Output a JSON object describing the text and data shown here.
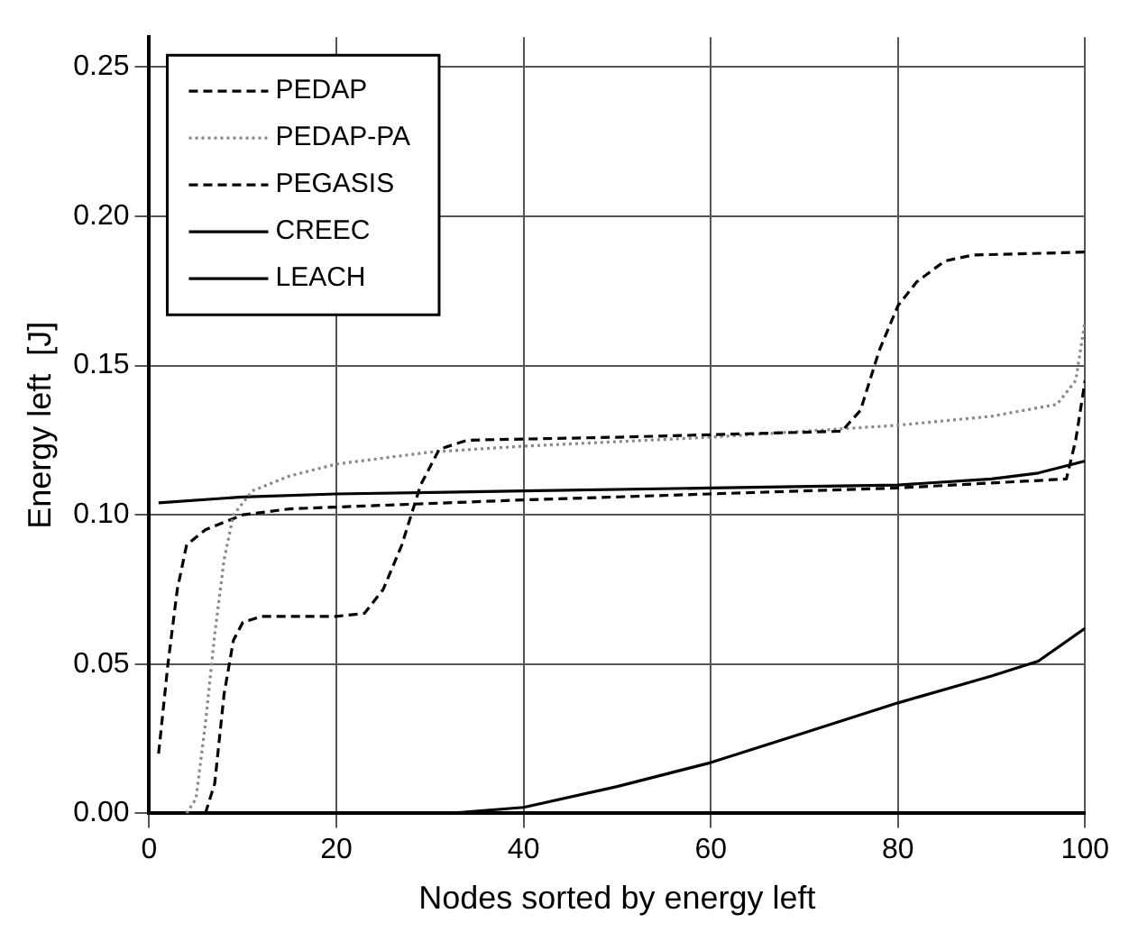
{
  "chart_data": {
    "type": "line",
    "xlabel": "Nodes sorted by energy left",
    "ylabel": "Energy left  [J]",
    "xlim": [
      0,
      100
    ],
    "xticks": [
      0,
      20,
      40,
      60,
      80,
      100
    ],
    "ylim": [
      0,
      0.26
    ],
    "yticks": [
      {
        "value": 0,
        "label": "0.00"
      },
      {
        "value": 0.05,
        "label": "0.05"
      },
      {
        "value": 0.1,
        "label": "0.10"
      },
      {
        "value": 0.15,
        "label": "0.15"
      },
      {
        "value": 0.2,
        "label": "0.20"
      },
      {
        "value": 0.25,
        "label": "0.25"
      }
    ],
    "grid": true,
    "legend": "top left",
    "marker": "none",
    "series": [
      {
        "name": "PEDAP",
        "color": "#000000",
        "line_style": "dashed",
        "x": [
          6,
          7,
          8,
          9,
          10,
          12,
          20,
          23,
          25,
          27,
          29,
          31,
          34,
          50,
          74,
          76,
          78,
          80,
          82,
          85,
          88,
          100
        ],
        "values": [
          0,
          0.01,
          0.04,
          0.058,
          0.064,
          0.066,
          0.066,
          0.067,
          0.075,
          0.09,
          0.11,
          0.122,
          0.125,
          0.126,
          0.128,
          0.135,
          0.155,
          0.17,
          0.178,
          0.185,
          0.187,
          0.188
        ]
      },
      {
        "name": "PEDAP-PA",
        "color": "#888888",
        "line_style": "dotted",
        "x": [
          4,
          5,
          6,
          7,
          8,
          9,
          11,
          15,
          20,
          30,
          40,
          60,
          80,
          90,
          97,
          99,
          100
        ],
        "values": [
          0,
          0.005,
          0.03,
          0.06,
          0.085,
          0.1,
          0.108,
          0.113,
          0.117,
          0.121,
          0.123,
          0.126,
          0.13,
          0.133,
          0.137,
          0.145,
          0.165
        ]
      },
      {
        "name": "PEGASIS",
        "color": "#000000",
        "line_style": "dashed",
        "x": [
          1,
          2,
          3,
          4,
          6,
          10,
          15,
          40,
          60,
          80,
          98,
          99,
          100
        ],
        "values": [
          0.02,
          0.05,
          0.075,
          0.09,
          0.095,
          0.1,
          0.102,
          0.105,
          0.107,
          0.109,
          0.112,
          0.125,
          0.145
        ]
      },
      {
        "name": "CREEC",
        "color": "#000000",
        "line_style": "solid",
        "x": [
          1,
          10,
          20,
          40,
          60,
          80,
          90,
          95,
          100
        ],
        "values": [
          0.104,
          0.106,
          0.107,
          0.108,
          0.109,
          0.11,
          0.112,
          0.114,
          0.118
        ]
      },
      {
        "name": "LEACH",
        "color": "#000000",
        "line_style": "solid",
        "x": [
          0,
          32,
          40,
          50,
          60,
          70,
          80,
          90,
          95,
          100
        ],
        "values": [
          0,
          0,
          0.002,
          0.009,
          0.017,
          0.027,
          0.037,
          0.046,
          0.051,
          0.062
        ]
      }
    ]
  }
}
